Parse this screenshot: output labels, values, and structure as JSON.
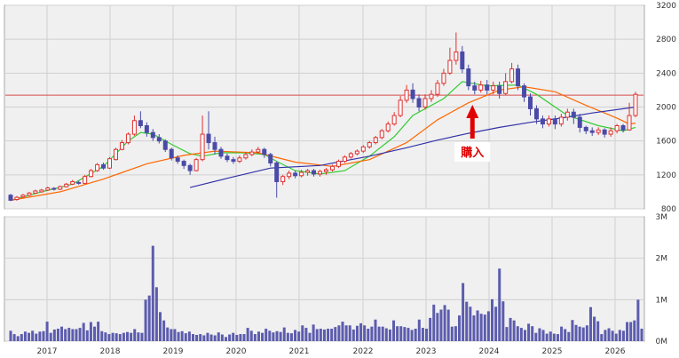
{
  "chart_data": [
    {
      "type": "candlestick",
      "ylim": [
        800,
        3200
      ],
      "yticks": [
        "800",
        "1200",
        "1600",
        "2000",
        "2400",
        "2800",
        "3200"
      ],
      "xticks": [
        "2017",
        "2018",
        "2019",
        "2020",
        "2021",
        "2022",
        "2023",
        "2024",
        "2025",
        "2026"
      ],
      "grid": true,
      "reference_line": {
        "y": 2140,
        "color": "#d94c4c"
      },
      "annotation": {
        "text": "購入",
        "date": "2023.75",
        "color": "#e00000"
      },
      "candles": [
        [
          960,
          900,
          975,
          890
        ],
        [
          910,
          935,
          950,
          895
        ],
        [
          940,
          960,
          975,
          925
        ],
        [
          960,
          985,
          1000,
          950
        ],
        [
          985,
          1010,
          1025,
          975
        ],
        [
          1000,
          1020,
          1035,
          990
        ],
        [
          1020,
          1045,
          1060,
          1010
        ],
        [
          1040,
          1030,
          1055,
          1015
        ],
        [
          1030,
          1060,
          1075,
          1020
        ],
        [
          1060,
          1090,
          1105,
          1050
        ],
        [
          1090,
          1120,
          1140,
          1080
        ],
        [
          1110,
          1100,
          1130,
          1085
        ],
        [
          1100,
          1180,
          1200,
          1090
        ],
        [
          1180,
          1250,
          1270,
          1170
        ],
        [
          1250,
          1320,
          1340,
          1235
        ],
        [
          1320,
          1280,
          1345,
          1260
        ],
        [
          1280,
          1390,
          1410,
          1270
        ],
        [
          1380,
          1500,
          1520,
          1370
        ],
        [
          1500,
          1580,
          1610,
          1490
        ],
        [
          1580,
          1680,
          1700,
          1560
        ],
        [
          1680,
          1840,
          1900,
          1660
        ],
        [
          1840,
          1780,
          1950,
          1750
        ],
        [
          1780,
          1700,
          1820,
          1650
        ],
        [
          1700,
          1640,
          1740,
          1600
        ],
        [
          1640,
          1600,
          1680,
          1570
        ],
        [
          1600,
          1500,
          1620,
          1470
        ],
        [
          1500,
          1400,
          1520,
          1370
        ],
        [
          1400,
          1360,
          1430,
          1330
        ],
        [
          1360,
          1310,
          1380,
          1270
        ],
        [
          1310,
          1250,
          1330,
          1200
        ],
        [
          1250,
          1380,
          1400,
          1240
        ],
        [
          1380,
          1680,
          1900,
          1360
        ],
        [
          1680,
          1580,
          1950,
          1500
        ],
        [
          1580,
          1500,
          1650,
          1440
        ],
        [
          1500,
          1420,
          1530,
          1390
        ],
        [
          1420,
          1380,
          1450,
          1350
        ],
        [
          1380,
          1360,
          1410,
          1330
        ],
        [
          1360,
          1400,
          1430,
          1340
        ],
        [
          1400,
          1440,
          1470,
          1380
        ],
        [
          1440,
          1470,
          1500,
          1420
        ],
        [
          1470,
          1500,
          1530,
          1450
        ],
        [
          1500,
          1440,
          1520,
          1400
        ],
        [
          1440,
          1340,
          1460,
          1300
        ],
        [
          1340,
          1120,
          1360,
          930
        ],
        [
          1120,
          1180,
          1200,
          1080
        ],
        [
          1180,
          1220,
          1250,
          1150
        ],
        [
          1220,
          1190,
          1250,
          1160
        ],
        [
          1190,
          1230,
          1260,
          1170
        ],
        [
          1230,
          1250,
          1270,
          1190
        ],
        [
          1250,
          1210,
          1270,
          1180
        ],
        [
          1210,
          1240,
          1260,
          1180
        ],
        [
          1240,
          1260,
          1280,
          1200
        ],
        [
          1260,
          1300,
          1320,
          1240
        ],
        [
          1300,
          1360,
          1380,
          1280
        ],
        [
          1360,
          1410,
          1430,
          1340
        ],
        [
          1410,
          1450,
          1470,
          1390
        ],
        [
          1450,
          1480,
          1500,
          1430
        ],
        [
          1480,
          1530,
          1550,
          1460
        ],
        [
          1530,
          1580,
          1600,
          1510
        ],
        [
          1580,
          1640,
          1660,
          1560
        ],
        [
          1640,
          1720,
          1740,
          1620
        ],
        [
          1720,
          1800,
          1830,
          1700
        ],
        [
          1800,
          1900,
          1940,
          1780
        ],
        [
          1900,
          2080,
          2130,
          1880
        ],
        [
          2080,
          2200,
          2260,
          2050
        ],
        [
          2200,
          2100,
          2280,
          2050
        ],
        [
          2100,
          2000,
          2150,
          1950
        ],
        [
          2000,
          2100,
          2150,
          1970
        ],
        [
          2100,
          2150,
          2200,
          2060
        ],
        [
          2150,
          2280,
          2320,
          2120
        ],
        [
          2280,
          2400,
          2450,
          2250
        ],
        [
          2400,
          2550,
          2700,
          2380
        ],
        [
          2550,
          2650,
          2880,
          2500
        ],
        [
          2650,
          2450,
          2720,
          2400
        ],
        [
          2450,
          2250,
          2500,
          2200
        ],
        [
          2250,
          2200,
          2300,
          2150
        ],
        [
          2200,
          2260,
          2310,
          2170
        ],
        [
          2260,
          2200,
          2320,
          2150
        ],
        [
          2200,
          2250,
          2300,
          2150
        ],
        [
          2250,
          2160,
          2300,
          2100
        ],
        [
          2160,
          2300,
          2400,
          2140
        ],
        [
          2300,
          2450,
          2520,
          2280
        ],
        [
          2450,
          2250,
          2500,
          2200
        ],
        [
          2250,
          2120,
          2280,
          2060
        ],
        [
          2120,
          1980,
          2160,
          1900
        ],
        [
          1980,
          1860,
          2020,
          1800
        ],
        [
          1860,
          1800,
          1900,
          1750
        ],
        [
          1800,
          1860,
          1900,
          1770
        ],
        [
          1860,
          1800,
          1900,
          1740
        ],
        [
          1800,
          1880,
          1920,
          1770
        ],
        [
          1880,
          1940,
          1980,
          1840
        ],
        [
          1940,
          1880,
          1980,
          1800
        ],
        [
          1880,
          1760,
          1920,
          1700
        ],
        [
          1760,
          1720,
          1780,
          1680
        ],
        [
          1720,
          1700,
          1760,
          1660
        ],
        [
          1700,
          1730,
          1760,
          1670
        ],
        [
          1730,
          1680,
          1750,
          1640
        ],
        [
          1680,
          1720,
          1760,
          1650
        ],
        [
          1720,
          1780,
          1800,
          1690
        ],
        [
          1780,
          1730,
          1800,
          1700
        ],
        [
          1730,
          1900,
          2050,
          1720
        ],
        [
          1900,
          2150,
          2180,
          1880
        ]
      ],
      "moving_averages": [
        {
          "color": "#33cc33",
          "values": [
            [
              0,
              900
            ],
            [
              5,
              1000
            ],
            [
              10,
              1090
            ],
            [
              15,
              1300
            ],
            [
              19,
              1600
            ],
            [
              21,
              1700
            ],
            [
              23,
              1680
            ],
            [
              26,
              1560
            ],
            [
              29,
              1450
            ],
            [
              31,
              1420
            ],
            [
              34,
              1460
            ],
            [
              38,
              1460
            ],
            [
              41,
              1440
            ],
            [
              43,
              1360
            ],
            [
              46,
              1250
            ],
            [
              50,
              1210
            ],
            [
              54,
              1250
            ],
            [
              58,
              1420
            ],
            [
              62,
              1650
            ],
            [
              65,
              1900
            ],
            [
              70,
              2100
            ],
            [
              73,
              2300
            ],
            [
              77,
              2250
            ],
            [
              82,
              2260
            ],
            [
              85,
              2150
            ],
            [
              90,
              1900
            ],
            [
              95,
              1780
            ],
            [
              99,
              1720
            ],
            [
              101,
              1760
            ]
          ]
        },
        {
          "color": "#ff6600",
          "values": [
            [
              0,
              900
            ],
            [
              8,
              1000
            ],
            [
              15,
              1150
            ],
            [
              22,
              1330
            ],
            [
              28,
              1430
            ],
            [
              33,
              1480
            ],
            [
              40,
              1460
            ],
            [
              46,
              1350
            ],
            [
              52,
              1300
            ],
            [
              58,
              1380
            ],
            [
              64,
              1580
            ],
            [
              69,
              1850
            ],
            [
              74,
              2050
            ],
            [
              79,
              2200
            ],
            [
              83,
              2240
            ],
            [
              88,
              2180
            ],
            [
              93,
              2020
            ],
            [
              98,
              1870
            ],
            [
              100,
              1800
            ],
            [
              101,
              1810
            ]
          ]
        },
        {
          "color": "#3333aa",
          "values": [
            [
              29,
              1050
            ],
            [
              35,
              1160
            ],
            [
              42,
              1280
            ],
            [
              50,
              1310
            ],
            [
              58,
              1420
            ],
            [
              64,
              1520
            ],
            [
              69,
              1610
            ],
            [
              74,
              1690
            ],
            [
              79,
              1760
            ],
            [
              84,
              1820
            ],
            [
              89,
              1870
            ],
            [
              94,
              1930
            ],
            [
              101,
              2000
            ]
          ]
        }
      ]
    },
    {
      "type": "bar",
      "ylim": [
        0,
        3000000
      ],
      "yticks": [
        "0M",
        "1M",
        "2M",
        "3M"
      ],
      "xticks": [
        "2017",
        "2018",
        "2019",
        "2020",
        "2021",
        "2022",
        "2023",
        "2024",
        "2025",
        "2026"
      ],
      "grid": true,
      "values": [
        250000,
        170000,
        120000,
        170000,
        230000,
        200000,
        250000,
        180000,
        230000,
        240000,
        470000,
        200000,
        280000,
        300000,
        350000,
        290000,
        320000,
        290000,
        290000,
        320000,
        440000,
        260000,
        460000,
        350000,
        470000,
        240000,
        210000,
        170000,
        200000,
        190000,
        170000,
        200000,
        220000,
        200000,
        290000,
        210000,
        200000,
        1000000,
        1100000,
        2300000,
        1300000,
        700000,
        500000,
        330000,
        290000,
        290000,
        220000,
        240000,
        190000,
        230000,
        170000,
        150000,
        170000,
        140000,
        200000,
        160000,
        140000,
        210000,
        160000,
        100000,
        160000,
        200000,
        150000,
        170000,
        170000,
        320000,
        250000,
        170000,
        230000,
        200000,
        300000,
        250000,
        210000,
        240000,
        220000,
        330000,
        200000,
        190000,
        270000,
        230000,
        380000,
        320000,
        200000,
        400000,
        290000,
        300000,
        280000,
        300000,
        300000,
        340000,
        380000,
        470000,
        380000,
        380000,
        280000,
        370000,
        430000,
        380000,
        300000,
        350000,
        520000,
        350000,
        350000,
        310000,
        280000,
        500000,
        360000,
        360000,
        340000,
        320000,
        270000,
        300000,
        520000,
        320000,
        300000,
        560000,
        880000,
        680000,
        760000,
        870000,
        760000,
        350000,
        360000,
        620000,
        1400000,
        950000,
        830000,
        620000,
        740000,
        660000,
        640000,
        720000,
        1010000,
        830000,
        1750000,
        960000,
        340000,
        560000,
        500000,
        360000,
        320000,
        270000,
        420000,
        360000,
        200000,
        310000,
        270000,
        180000,
        230000,
        180000,
        170000,
        350000,
        290000,
        220000,
        510000,
        390000,
        350000,
        330000,
        380000,
        820000,
        590000,
        480000,
        170000,
        270000,
        310000,
        250000,
        180000,
        270000,
        250000,
        460000,
        460000,
        500000,
        1000000,
        300000
      ]
    }
  ]
}
